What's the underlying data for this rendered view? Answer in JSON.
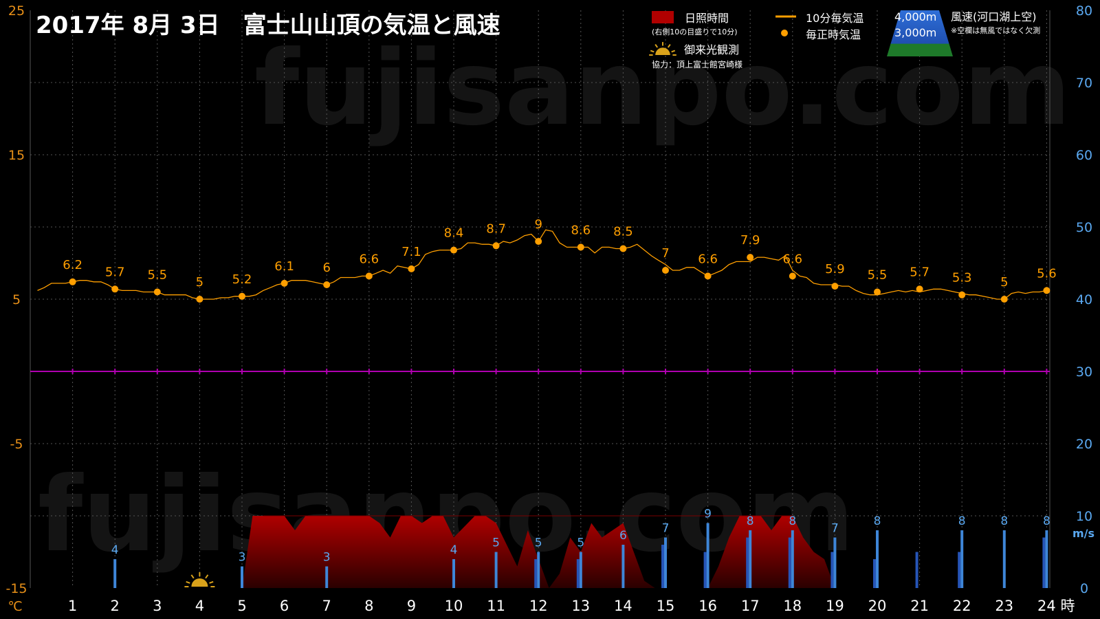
{
  "chart_data": {
    "type": "line",
    "title": "2017年 8月 3日　富士山山頂の気温と風速",
    "watermark": "fujisanpo.com",
    "x": [
      1,
      2,
      3,
      4,
      5,
      6,
      7,
      8,
      9,
      10,
      11,
      12,
      13,
      14,
      15,
      16,
      17,
      18,
      19,
      20,
      21,
      22,
      23,
      24
    ],
    "x_ticks": [
      "1",
      "2",
      "3",
      "4",
      "5",
      "6",
      "7",
      "8",
      "9",
      "10",
      "11",
      "12",
      "13",
      "14",
      "15",
      "16",
      "17",
      "18",
      "19",
      "20",
      "21",
      "22",
      "23",
      "24"
    ],
    "x_unit": "時",
    "y_left": {
      "unit": "℃",
      "ticks": [
        "25",
        "15",
        "5",
        "-5",
        "-15"
      ],
      "range": [
        -15,
        25
      ]
    },
    "y_right": {
      "unit": "m/s",
      "ticks": [
        "80",
        "70",
        "60",
        "50",
        "40",
        "30",
        "20",
        "10",
        "0"
      ],
      "range": [
        0,
        80
      ]
    },
    "zero_line_celsius": 0,
    "series": [
      {
        "name": "毎正時気温",
        "color": "#FF9F00",
        "values": [
          6.2,
          5.7,
          5.5,
          5,
          5.2,
          6.1,
          6,
          6.6,
          7.1,
          8.4,
          8.7,
          9,
          8.6,
          8.5,
          7,
          6.6,
          7.9,
          6.6,
          5.9,
          5.5,
          5.7,
          5.3,
          5,
          5.6
        ],
        "labels": [
          "6.2",
          "5.7",
          "5.5",
          "5",
          "5.2",
          "6.1",
          "6",
          "6.6",
          "7.1",
          "8.4",
          "8.7",
          "9",
          "8.6",
          "8.5",
          "7",
          "6.6",
          "7.9",
          "6.6",
          "5.9",
          "5.5",
          "5.7",
          "5.3",
          "5",
          "5.6"
        ]
      },
      {
        "name": "10分毎気温",
        "color": "#FF9F00",
        "x": [
          0.17,
          0.33,
          0.5,
          0.67,
          0.83,
          1,
          1.17,
          1.33,
          1.5,
          1.67,
          1.83,
          2,
          2.17,
          2.33,
          2.5,
          2.67,
          2.83,
          3,
          3.17,
          3.33,
          3.5,
          3.67,
          3.83,
          4,
          4.17,
          4.33,
          4.5,
          4.67,
          4.83,
          5,
          5.17,
          5.33,
          5.5,
          5.67,
          5.83,
          6,
          6.17,
          6.33,
          6.5,
          6.67,
          6.83,
          7,
          7.17,
          7.33,
          7.5,
          7.67,
          7.83,
          8,
          8.17,
          8.33,
          8.5,
          8.67,
          8.83,
          9,
          9.17,
          9.33,
          9.5,
          9.67,
          9.83,
          10,
          10.17,
          10.33,
          10.5,
          10.67,
          10.83,
          11,
          11.17,
          11.33,
          11.5,
          11.67,
          11.83,
          12,
          12.17,
          12.33,
          12.5,
          12.67,
          12.83,
          13,
          13.17,
          13.33,
          13.5,
          13.67,
          13.83,
          14,
          14.17,
          14.33,
          14.5,
          14.67,
          14.83,
          15,
          15.17,
          15.33,
          15.5,
          15.67,
          15.83,
          16,
          16.17,
          16.33,
          16.5,
          16.67,
          16.83,
          17,
          17.17,
          17.33,
          17.5,
          17.67,
          17.83,
          18,
          18.17,
          18.33,
          18.5,
          18.67,
          18.83,
          19,
          19.17,
          19.33,
          19.5,
          19.67,
          19.83,
          20,
          20.17,
          20.33,
          20.5,
          20.67,
          20.83,
          21,
          21.17,
          21.33,
          21.5,
          21.67,
          21.83,
          22,
          22.17,
          22.33,
          22.5,
          22.67,
          22.83,
          23,
          23.17,
          23.33,
          23.5,
          23.67,
          23.83,
          24
        ],
        "values": [
          5.6,
          5.8,
          6.1,
          6.1,
          6.1,
          6.2,
          6.3,
          6.3,
          6.2,
          6.2,
          6.0,
          5.7,
          5.6,
          5.6,
          5.6,
          5.5,
          5.5,
          5.5,
          5.3,
          5.3,
          5.3,
          5.3,
          5.1,
          5.0,
          5.0,
          5.0,
          5.1,
          5.1,
          5.2,
          5.2,
          5.2,
          5.3,
          5.6,
          5.8,
          6.0,
          6.1,
          6.3,
          6.3,
          6.3,
          6.2,
          6.1,
          6.0,
          6.2,
          6.5,
          6.5,
          6.5,
          6.6,
          6.6,
          6.8,
          7.0,
          6.8,
          7.3,
          7.2,
          7.1,
          7.4,
          8.1,
          8.3,
          8.4,
          8.4,
          8.4,
          8.5,
          8.9,
          8.9,
          8.8,
          8.8,
          8.7,
          9.0,
          8.9,
          9.1,
          9.4,
          9.5,
          9.0,
          9.8,
          9.7,
          8.9,
          8.6,
          8.6,
          8.6,
          8.6,
          8.2,
          8.6,
          8.6,
          8.5,
          8.5,
          8.6,
          8.8,
          8.4,
          8.0,
          7.7,
          7.4,
          7.0,
          7.0,
          7.2,
          7.2,
          6.9,
          6.6,
          6.8,
          7.0,
          7.4,
          7.6,
          7.6,
          7.6,
          7.9,
          7.9,
          7.8,
          7.7,
          8.0,
          7.0,
          6.6,
          6.5,
          6.1,
          6.0,
          6.0,
          6.0,
          5.9,
          5.9,
          5.6,
          5.4,
          5.3,
          5.3,
          5.4,
          5.5,
          5.6,
          5.5,
          5.6,
          5.5,
          5.6,
          5.7,
          5.7,
          5.6,
          5.5,
          5.4,
          5.3,
          5.3,
          5.2,
          5.1,
          5.0,
          5.0,
          5.4,
          5.5,
          5.4,
          5.5,
          5.5,
          5.6
        ]
      },
      {
        "name": "風速(河口湖上空) 4,000m",
        "color": "#3E86D8",
        "type": "bar",
        "values": [
          null,
          4,
          null,
          null,
          3,
          null,
          3,
          null,
          null,
          4,
          5,
          5,
          5,
          6,
          7,
          9,
          8,
          8,
          7,
          8,
          null,
          8,
          8,
          8
        ],
        "labels": [
          "",
          "4",
          "",
          "",
          "3",
          "",
          "3",
          "",
          "",
          "4",
          "5",
          "5",
          "5",
          "6",
          "7",
          "9",
          "8",
          "8",
          "7",
          "8",
          "",
          "8",
          "8",
          "8"
        ]
      },
      {
        "name": "風速(河口湖上空) 3,000m",
        "color": "#2655B8",
        "type": "bar",
        "values": [
          null,
          null,
          null,
          null,
          null,
          null,
          null,
          null,
          null,
          null,
          null,
          4,
          4,
          null,
          6,
          5,
          7,
          7,
          5,
          4,
          5,
          5,
          null,
          7
        ]
      },
      {
        "name": "日照時間",
        "color": "#C00000",
        "type": "area",
        "x": [
          5.0,
          5.25,
          5.5,
          6.0,
          6.25,
          6.5,
          7.0,
          7.5,
          8.0,
          8.25,
          8.5,
          8.75,
          9.0,
          9.25,
          9.5,
          9.75,
          10.0,
          10.5,
          10.75,
          11.0,
          11.25,
          11.5,
          11.75,
          12.0,
          12.25,
          12.5,
          12.75,
          13.0,
          13.25,
          13.5,
          13.75,
          14.0,
          14.25,
          14.5,
          14.75,
          15.0,
          15.25,
          15.5,
          15.75,
          16.0,
          16.25,
          16.5,
          16.75,
          17.0,
          17.25,
          17.5,
          17.75,
          18.0,
          18.25,
          18.5,
          18.75,
          19.0,
          19.25
        ],
        "values": [
          0,
          10,
          10,
          10,
          8,
          10,
          10,
          10,
          10,
          9,
          7,
          10,
          10,
          9,
          10,
          10,
          7,
          10,
          10,
          9,
          6,
          3,
          8,
          4,
          0,
          2,
          7,
          5,
          9,
          7,
          8,
          9,
          5,
          1,
          0,
          0,
          0,
          0,
          0,
          0,
          3,
          7,
          10,
          10,
          10,
          8,
          10,
          10,
          7,
          5,
          4,
          0,
          0
        ]
      }
    ],
    "legend": {
      "sunshine": "日照時間",
      "sunshine_note": "(右側10の目盛りで10分)",
      "temp10": "10分毎気温",
      "temp_hour": "毎正時気温",
      "goraiko": "御来光観測",
      "wind_title": "風速(河口湖上空)",
      "wind_note": "※空欄は無風ではなく欠測",
      "alt_4000": "4,000m",
      "alt_3000": "3,000m",
      "cooperation": "協力：頂上富士館宮崎様"
    },
    "goraiko_hour": 4,
    "grid": true
  },
  "colors": {
    "background": "#000000",
    "temperature": "#FF9F00",
    "wind_4000": "#3E86D8",
    "wind_3000": "#2655B8",
    "sunshine_top": "#B00000",
    "sunshine_bottom": "#2A0000",
    "zero_line": "#B000B0",
    "grid": "#555555",
    "left_axis_text": "#E89018",
    "right_axis_text": "#5AA8F0",
    "title": "#FFFFFF"
  }
}
